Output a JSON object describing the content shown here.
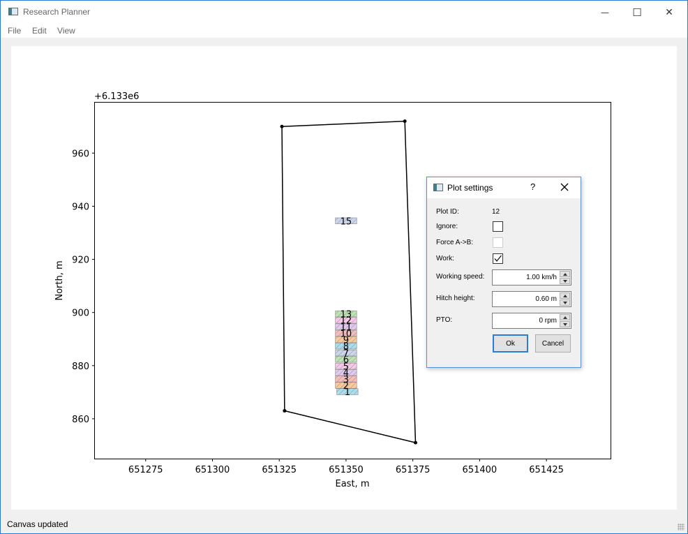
{
  "window": {
    "title": "Research Planner",
    "minimize_glyph": "—",
    "maximize_glyph": "☐",
    "close_glyph": "✕"
  },
  "menu": [
    "File",
    "Edit",
    "View"
  ],
  "status": "Canvas updated",
  "colors": {
    "accent": "#2f7bd4",
    "plot_palette": [
      "#8fd0e6",
      "#f6b87a",
      "#f2a5a5",
      "#d7b6e8",
      "#f2b6e0",
      "#a7d89a",
      "#b9c8e6"
    ]
  },
  "chart_data": {
    "type": "scatter",
    "offset_label": "+6.133e6",
    "xlabel": "East, m",
    "ylabel": "North, m",
    "xlim": [
      651256,
      651449
    ],
    "ylim": [
      6133845,
      6133979
    ],
    "xticks": [
      651275,
      651300,
      651325,
      651350,
      651375,
      651400,
      651425
    ],
    "yticks": [
      860,
      880,
      900,
      920,
      940,
      960
    ],
    "yticks_full": [
      6133860,
      6133880,
      6133900,
      6133920,
      6133940,
      6133960
    ],
    "field_boundary": [
      [
        651326,
        6133970
      ],
      [
        651372,
        6133972
      ],
      [
        651376,
        6133851
      ],
      [
        651327,
        6133863
      ],
      [
        651326,
        6133970
      ]
    ],
    "plots": [
      {
        "label": "1",
        "x": 651350.5,
        "y": 6133870.2,
        "w": 8,
        "h": 2.3
      },
      {
        "label": "2",
        "x": 651350,
        "y": 6133872.6,
        "w": 8,
        "h": 2.3
      },
      {
        "label": "3",
        "x": 651350,
        "y": 6133875,
        "w": 8,
        "h": 2.3
      },
      {
        "label": "4",
        "x": 651350,
        "y": 6133877.4,
        "w": 8,
        "h": 2.3
      },
      {
        "label": "5",
        "x": 651350,
        "y": 6133879.8,
        "w": 8,
        "h": 2.3
      },
      {
        "label": "6",
        "x": 651350,
        "y": 6133882.4,
        "w": 8,
        "h": 2.3
      },
      {
        "label": "7",
        "x": 651350,
        "y": 6133884.8,
        "w": 8,
        "h": 2.3
      },
      {
        "label": "8",
        "x": 651350,
        "y": 6133887.4,
        "w": 8,
        "h": 2.3
      },
      {
        "label": "9",
        "x": 651350,
        "y": 6133889.8,
        "w": 8,
        "h": 2.3
      },
      {
        "label": "10",
        "x": 651350,
        "y": 6133892.2,
        "w": 8,
        "h": 2.3
      },
      {
        "label": "11",
        "x": 651350,
        "y": 6133894.6,
        "w": 8,
        "h": 2.3
      },
      {
        "label": "12",
        "x": 651350,
        "y": 6133897.1,
        "w": 8,
        "h": 2.3
      },
      {
        "label": "13",
        "x": 651350,
        "y": 6133899.5,
        "w": 8,
        "h": 2.3
      },
      {
        "label": "15",
        "x": 651350,
        "y": 6133934.5,
        "w": 8,
        "h": 2.3
      }
    ]
  },
  "dialog": {
    "title": "Plot settings",
    "help_glyph": "?",
    "plot_id_label": "Plot ID:",
    "plot_id_value": "12",
    "ignore_label": "Ignore:",
    "ignore_checked": false,
    "force_label": "Force A->B:",
    "force_checked": false,
    "work_label": "Work:",
    "work_checked": true,
    "speed_label": "Working speed:",
    "speed_value": "1.00 km/h",
    "hitch_label": "Hitch height:",
    "hitch_value": "0.60 m",
    "pto_label": "PTO:",
    "pto_value": "0 rpm",
    "ok_label": "Ok",
    "cancel_label": "Cancel"
  }
}
